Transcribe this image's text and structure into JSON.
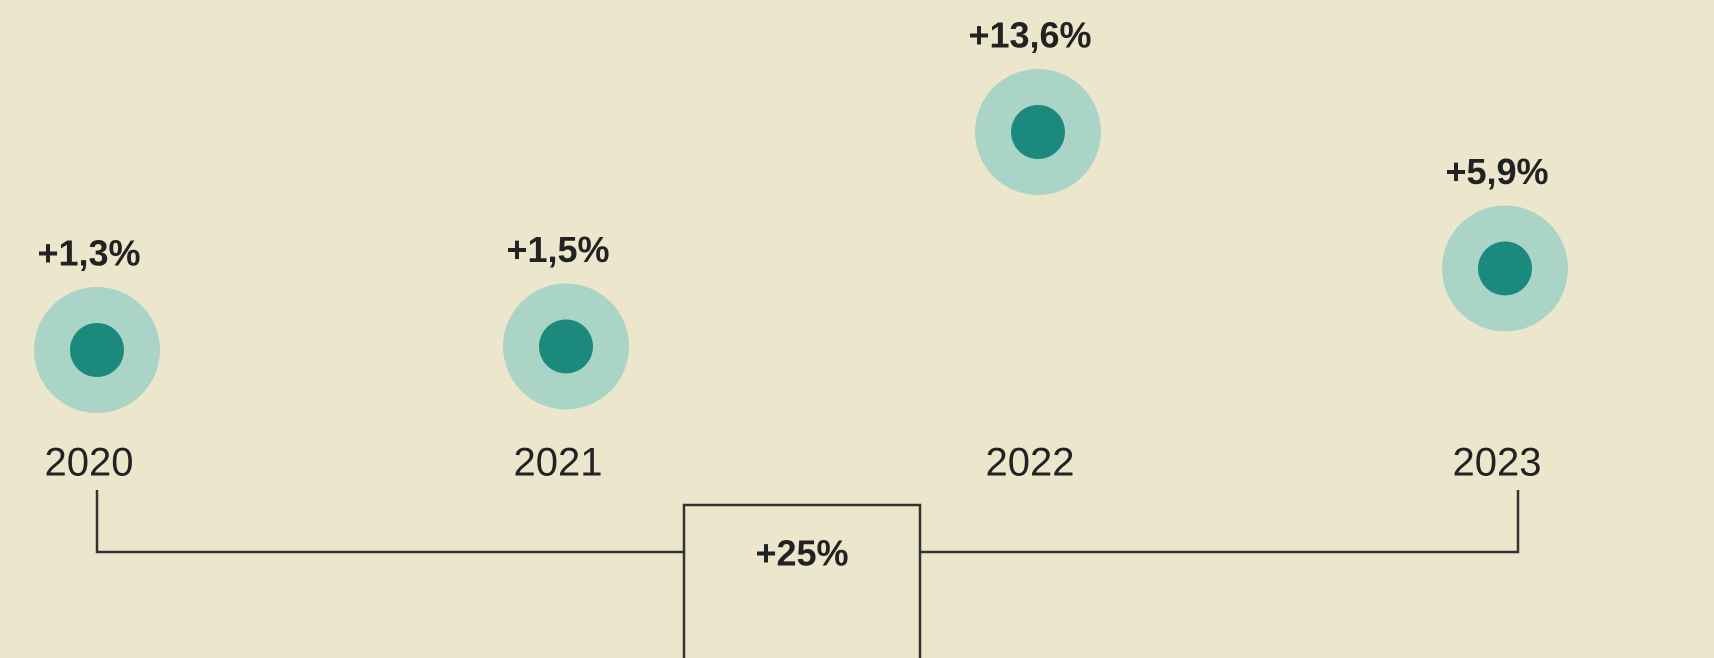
{
  "chart_data": {
    "type": "dot",
    "categories": [
      "2020",
      "2021",
      "2022",
      "2023"
    ],
    "values": [
      1.3,
      1.5,
      13.6,
      5.9
    ],
    "value_labels": [
      "+1,3%",
      "+1,5%",
      "+13,6%",
      "+5,9%"
    ],
    "color": "#1b8a7c",
    "halo_color": "#a9d4c6",
    "annotation": "+25%"
  }
}
